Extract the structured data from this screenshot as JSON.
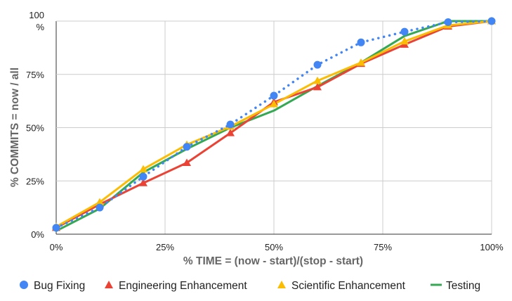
{
  "chart_data": {
    "type": "line",
    "xlabel": "% TIME = (now - start)/(stop - start)",
    "ylabel": "% COMMITS = now / all",
    "xlim": [
      0,
      100
    ],
    "ylim": [
      0,
      100
    ],
    "x_ticks": [
      0,
      25,
      50,
      75,
      100
    ],
    "y_ticks": [
      0,
      25,
      50,
      75,
      100
    ],
    "x_tick_labels": [
      "0%",
      "25%",
      "50%",
      "75%",
      "100%"
    ],
    "y_tick_labels": [
      "0%",
      "25%",
      "50%",
      "75%",
      "100\n%"
    ],
    "grid": true,
    "legend_position": "bottom",
    "x": [
      0,
      10,
      20,
      30,
      40,
      50,
      60,
      70,
      80,
      90,
      100
    ],
    "series": [
      {
        "name": "Bug Fixing",
        "color": "#4285f4",
        "marker": "circle",
        "line_style": "dotted",
        "values": [
          3,
          12.5,
          27,
          41,
          51.5,
          65,
          79.5,
          90,
          95,
          99.5,
          100
        ]
      },
      {
        "name": "Engineering Enhancement",
        "color": "#ea4335",
        "marker": "triangle",
        "line_style": "solid",
        "values": [
          3,
          14,
          24,
          33.5,
          47.5,
          62,
          69,
          80,
          89,
          97.5,
          100
        ]
      },
      {
        "name": "Scientific Enhancement",
        "color": "#fbbc04",
        "marker": "triangle",
        "line_style": "solid",
        "values": [
          3.5,
          15,
          30.5,
          42,
          50.5,
          61,
          72,
          80.5,
          90.5,
          98,
          100
        ]
      },
      {
        "name": "Testing",
        "color": "#34a853",
        "marker": "none",
        "line_style": "solid",
        "values": [
          1.5,
          12,
          29,
          40,
          50,
          58,
          69.5,
          80.5,
          93,
          100,
          100
        ]
      }
    ]
  }
}
